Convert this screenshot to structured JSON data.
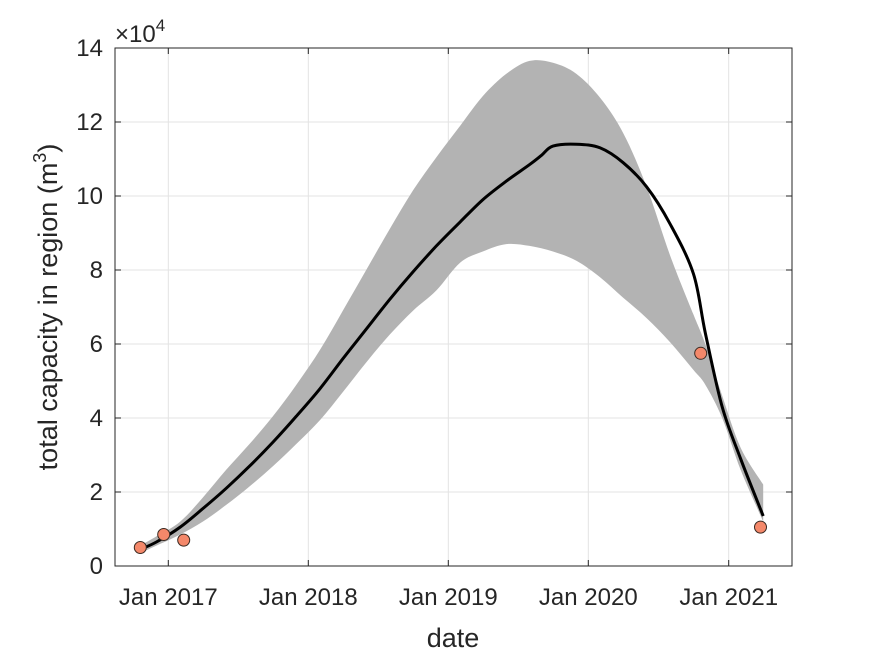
{
  "chart_data": {
    "type": "line",
    "title": "",
    "xlabel": "date",
    "ylabel": "total capacity in region",
    "ylabel_unit_base": "(m",
    "ylabel_unit_exp": "3",
    "ylabel_unit_close": ")",
    "y_multiplier_base": "×10",
    "y_multiplier_exp": "4",
    "grid": true,
    "xlim": [
      "2016-08-15",
      "2021-06-15"
    ],
    "ylim": [
      0,
      140000
    ],
    "x_ticks": [
      {
        "date": "2017-01-01",
        "label": "Jan 2017"
      },
      {
        "date": "2018-01-01",
        "label": "Jan 2018"
      },
      {
        "date": "2019-01-01",
        "label": "Jan 2019"
      },
      {
        "date": "2020-01-01",
        "label": "Jan 2020"
      },
      {
        "date": "2021-01-01",
        "label": "Jan 2021"
      }
    ],
    "y_ticks": [
      {
        "value": 0,
        "label": "0"
      },
      {
        "value": 20000,
        "label": "2"
      },
      {
        "value": 40000,
        "label": "4"
      },
      {
        "value": 60000,
        "label": "6"
      },
      {
        "value": 80000,
        "label": "8"
      },
      {
        "value": 100000,
        "label": "10"
      },
      {
        "value": 120000,
        "label": "12"
      },
      {
        "value": 140000,
        "label": "14"
      }
    ],
    "colors": {
      "line": "#000000",
      "band": "#b3b3b3",
      "marker_fill": "#f4886a",
      "marker_edge": "#3a2a22",
      "grid": "#e3e3e3",
      "axis": "#262626"
    },
    "series": [
      {
        "type": "line",
        "x": [
          "2016-10-20",
          "2016-12-01",
          "2017-02-01",
          "2017-04-01",
          "2017-06-01",
          "2017-08-01",
          "2017-10-01",
          "2017-12-01",
          "2018-02-01",
          "2018-04-01",
          "2018-06-01",
          "2018-08-01",
          "2018-10-01",
          "2018-12-01",
          "2019-02-01",
          "2019-04-01",
          "2019-06-01",
          "2019-08-01",
          "2019-09-01",
          "2019-10-01",
          "2019-12-01",
          "2020-02-01",
          "2020-04-01",
          "2020-06-01",
          "2020-08-01",
          "2020-10-01",
          "2020-11-01",
          "2020-12-15",
          "2021-02-01",
          "2021-04-01"
        ],
        "y": [
          4500,
          6500,
          10500,
          15500,
          21000,
          27000,
          33500,
          40500,
          48000,
          56000,
          64000,
          72000,
          79500,
          86500,
          93000,
          99000,
          104000,
          108500,
          111000,
          113500,
          114000,
          113000,
          109000,
          102500,
          92500,
          79000,
          63000,
          43000,
          29000,
          13500
        ]
      },
      {
        "type": "band",
        "x": [
          "2016-10-20",
          "2016-12-01",
          "2017-02-01",
          "2017-04-01",
          "2017-06-01",
          "2017-08-01",
          "2017-10-01",
          "2017-12-01",
          "2018-02-01",
          "2018-04-01",
          "2018-06-01",
          "2018-08-01",
          "2018-10-01",
          "2018-12-01",
          "2019-02-01",
          "2019-04-01",
          "2019-06-01",
          "2019-08-01",
          "2019-10-01",
          "2019-12-01",
          "2020-02-01",
          "2020-04-01",
          "2020-06-01",
          "2020-08-01",
          "2020-10-01",
          "2020-11-01",
          "2020-12-15",
          "2021-02-01",
          "2021-04-01"
        ],
        "lower": [
          3500,
          5500,
          8500,
          12000,
          16500,
          21500,
          27000,
          33000,
          39500,
          47000,
          55000,
          62500,
          69000,
          74500,
          82000,
          85000,
          87000,
          86500,
          85000,
          82500,
          78000,
          72500,
          67000,
          60500,
          53000,
          49000,
          40000,
          26000,
          12000
        ],
        "upper": [
          5500,
          8000,
          12000,
          18500,
          26000,
          33000,
          40500,
          49000,
          58500,
          69000,
          80000,
          91000,
          101500,
          110500,
          119000,
          127000,
          133000,
          136500,
          136000,
          133000,
          126500,
          117000,
          102500,
          84000,
          68000,
          60000,
          46000,
          32000,
          22000
        ]
      },
      {
        "type": "scatter",
        "x": [
          "2016-10-20",
          "2016-12-20",
          "2017-02-10",
          "2020-10-20",
          "2021-03-25"
        ],
        "y": [
          5000,
          8500,
          7000,
          57500,
          10500
        ]
      }
    ]
  }
}
